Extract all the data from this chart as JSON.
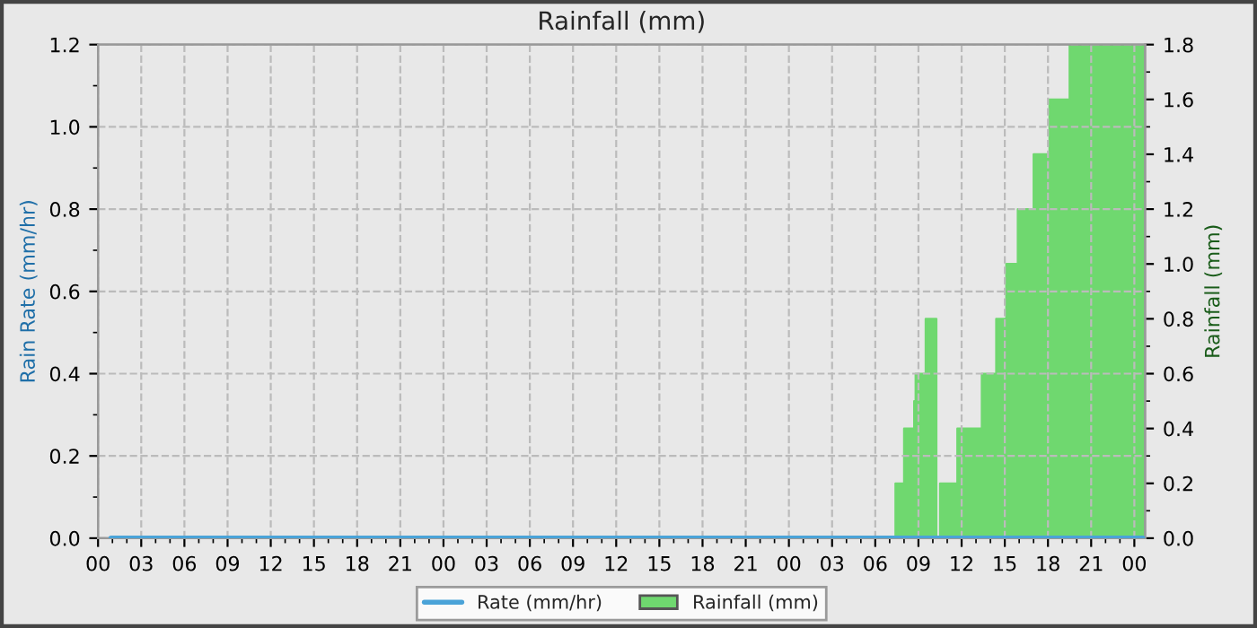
{
  "chart_data": {
    "type": "area",
    "title": "Rainfall (mm)",
    "ylabel": "Rain Rate (mm/hr)",
    "y2label": "Rainfall (mm)",
    "xlim": [
      0,
      72.75
    ],
    "xticks": [
      {
        "value": 0,
        "label": "00"
      },
      {
        "value": 3,
        "label": "03"
      },
      {
        "value": 6,
        "label": "06"
      },
      {
        "value": 9,
        "label": "09"
      },
      {
        "value": 12,
        "label": "12"
      },
      {
        "value": 15,
        "label": "15"
      },
      {
        "value": 18,
        "label": "18"
      },
      {
        "value": 21,
        "label": "21"
      },
      {
        "value": 24,
        "label": "00"
      },
      {
        "value": 27,
        "label": "03"
      },
      {
        "value": 30,
        "label": "06"
      },
      {
        "value": 33,
        "label": "09"
      },
      {
        "value": 36,
        "label": "12"
      },
      {
        "value": 39,
        "label": "15"
      },
      {
        "value": 42,
        "label": "18"
      },
      {
        "value": 45,
        "label": "21"
      },
      {
        "value": 48,
        "label": "00"
      },
      {
        "value": 51,
        "label": "03"
      },
      {
        "value": 54,
        "label": "06"
      },
      {
        "value": 57,
        "label": "09"
      },
      {
        "value": 60,
        "label": "12"
      },
      {
        "value": 63,
        "label": "15"
      },
      {
        "value": 66,
        "label": "18"
      },
      {
        "value": 69,
        "label": "21"
      },
      {
        "value": 72,
        "label": "00"
      }
    ],
    "ylim": [
      0,
      1.2
    ],
    "yticks": [
      {
        "value": 0,
        "label": "0.0"
      },
      {
        "value": 0.2,
        "label": "0.2"
      },
      {
        "value": 0.4,
        "label": "0.4"
      },
      {
        "value": 0.6,
        "label": "0.6"
      },
      {
        "value": 0.8,
        "label": "0.8"
      },
      {
        "value": 1.0,
        "label": "1.0"
      },
      {
        "value": 1.2,
        "label": "1.2"
      }
    ],
    "y2lim": [
      0,
      1.8
    ],
    "y2ticks": [
      {
        "value": 0,
        "label": "0.0"
      },
      {
        "value": 0.2,
        "label": "0.2"
      },
      {
        "value": 0.4,
        "label": "0.4"
      },
      {
        "value": 0.6,
        "label": "0.6"
      },
      {
        "value": 0.8,
        "label": "0.8"
      },
      {
        "value": 1.0,
        "label": "1.0"
      },
      {
        "value": 1.2,
        "label": "1.2"
      },
      {
        "value": 1.4,
        "label": "1.4"
      },
      {
        "value": 1.6,
        "label": "1.6"
      },
      {
        "value": 1.8,
        "label": "1.8"
      }
    ],
    "grid": true,
    "legend": "bottom",
    "marker": "none",
    "line_style": "solid",
    "series": [
      {
        "name": "Rate (mm/hr)",
        "type": "line",
        "color": "#4aa3d8",
        "x": [
          0.9,
          72.6
        ],
        "values": [
          0,
          0
        ]
      },
      {
        "name": "Rainfall (mm)",
        "axis": "y2",
        "color": "#6fd86f",
        "x": [
          55.4,
          55.4,
          56.0,
          56.0,
          56.7,
          56.7,
          56.8,
          56.8,
          57.5,
          57.5,
          58.25,
          58.25,
          58.4,
          58.5,
          58.5,
          59.7,
          59.7,
          61.4,
          61.4,
          62.4,
          62.4,
          63.1,
          63.1,
          63.9,
          63.9,
          65.0,
          65.0,
          66.1,
          66.1,
          67.5,
          67.5,
          72.75
        ],
        "values": [
          0,
          0.2,
          0.2,
          0.4,
          0.4,
          0.5,
          0.5,
          0.6,
          0.6,
          0.8,
          0.8,
          0,
          null,
          0,
          0.2,
          0.2,
          0.4,
          0.4,
          0.6,
          0.6,
          0.8,
          0.8,
          1.0,
          1.0,
          1.2,
          1.2,
          1.4,
          1.4,
          1.6,
          1.6,
          1.8,
          1.8
        ]
      }
    ]
  }
}
